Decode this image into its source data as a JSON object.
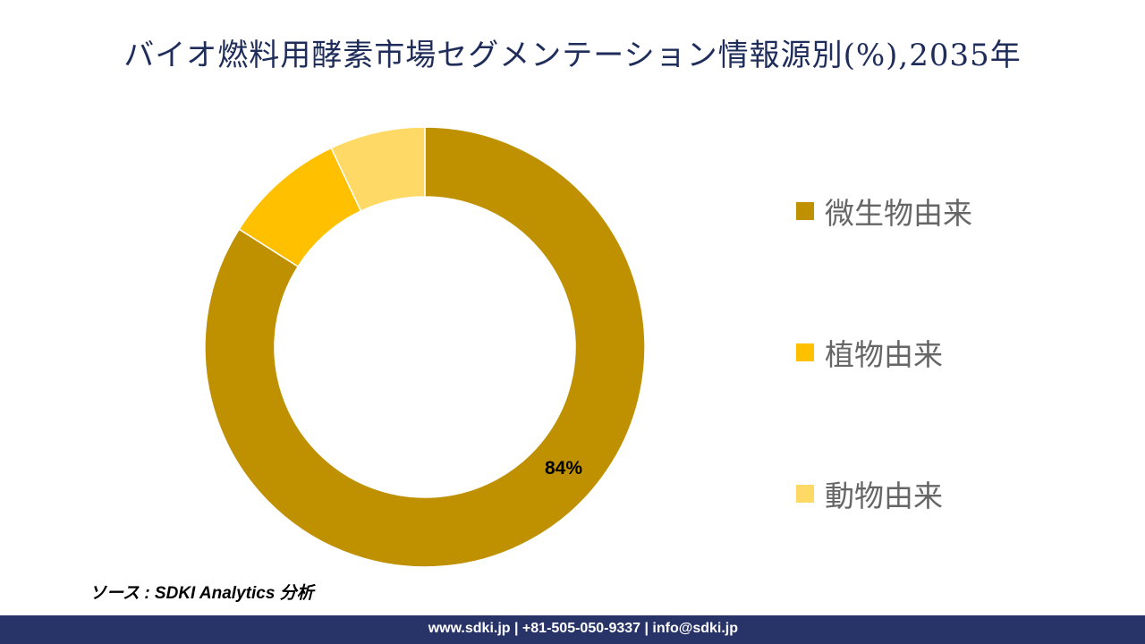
{
  "chart_data": {
    "type": "pie",
    "variant": "donut",
    "title": "バイオ燃料用酵素市場セグメンテーション情報源別(%),2035年",
    "slices": [
      {
        "label": "微生物由来",
        "value": 84,
        "color": "#BF9000",
        "data_label": "84%"
      },
      {
        "label": "植物由来",
        "value": 9,
        "color": "#FFC000"
      },
      {
        "label": "動物由来",
        "value": 7,
        "color": "#FFD966"
      }
    ],
    "legend_position": "right"
  },
  "source": "ソース : SDKI Analytics 分析",
  "footer": "www.sdki.jp | +81-505-050-9337 | info@sdki.jp"
}
